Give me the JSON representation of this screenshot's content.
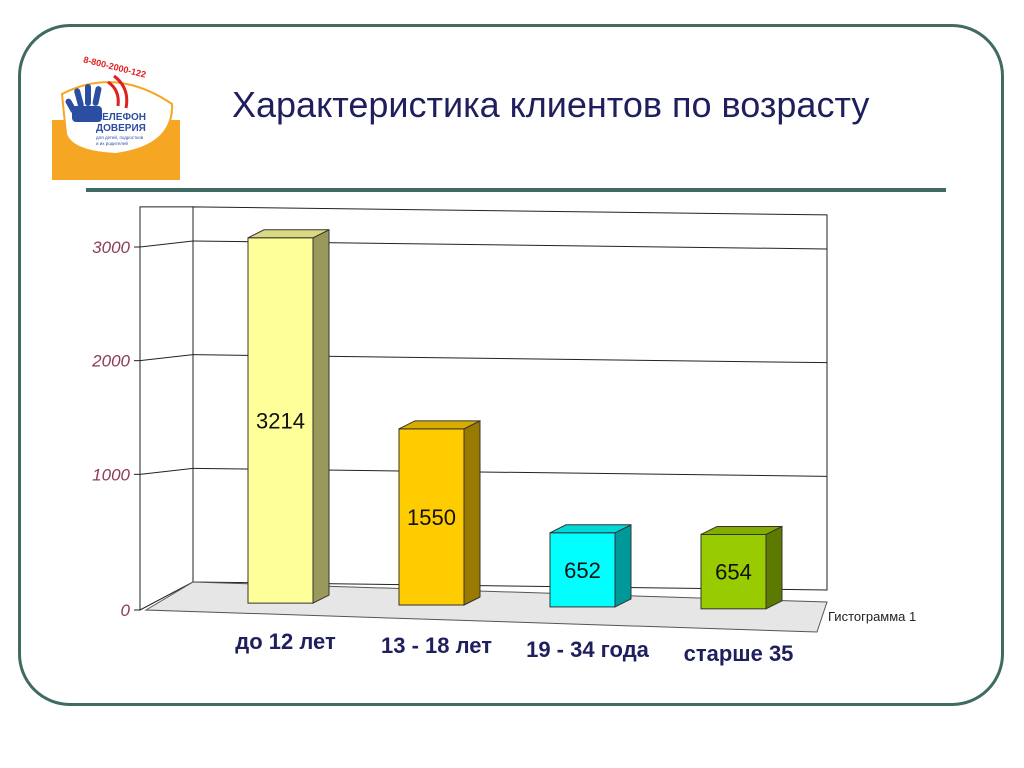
{
  "slide": {
    "title": "Характеристика клиентов по возрасту"
  },
  "logo": {
    "phone_number": "8-800-2000-122",
    "line1": "ТЕЛЕФОН",
    "line2": "ДОВЕРИЯ",
    "tagline1": "для детей, подростков",
    "tagline2": "и их родителей"
  },
  "chart_data": {
    "type": "bar",
    "style": "3d",
    "title": "",
    "xlabel": "",
    "ylabel": "",
    "categories": [
      "до 12 лет",
      "13 - 18 лет",
      "19 - 34 года",
      "старше 35"
    ],
    "values": [
      3214,
      1550,
      652,
      654
    ],
    "data_labels": [
      "3214",
      "1550",
      "652",
      "654"
    ],
    "bar_colors": [
      "#ffff99",
      "#ffcc00",
      "#00ffff",
      "#99cc00"
    ],
    "ylim": [
      0,
      3000
    ],
    "y_ticks": [
      "0",
      "1000",
      "2000",
      "3000"
    ],
    "grid": true,
    "legend": {
      "label": "Гистограмма 1",
      "placement": "right"
    }
  }
}
